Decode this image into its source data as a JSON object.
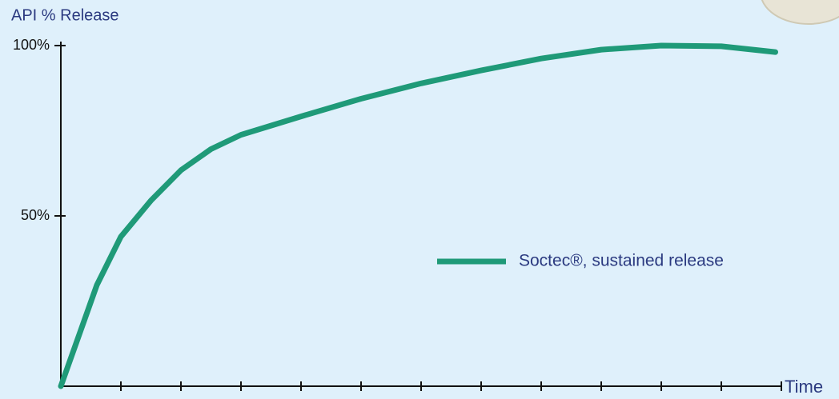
{
  "chart_data": {
    "type": "line",
    "y_axis_label": "API % Release",
    "x_axis_label": "Time",
    "x": [
      0,
      0.6,
      1,
      1.5,
      2,
      2.5,
      3,
      4,
      5,
      6,
      7,
      8,
      9,
      10,
      11,
      11.9
    ],
    "series": [
      {
        "name": "Soctec®, sustained release",
        "color": "#1f9a78",
        "values": [
          0,
          29.7,
          43.9,
          54.5,
          63.4,
          69.6,
          73.8,
          79.2,
          84.4,
          88.9,
          92.7,
          96.2,
          98.8,
          100,
          99.8,
          98.1
        ]
      }
    ],
    "xlim": [
      0,
      12
    ],
    "xticks": [
      1,
      2,
      3,
      4,
      5,
      6,
      7,
      8,
      9,
      10,
      11,
      12
    ],
    "ylim": [
      0,
      100
    ],
    "yticks": [
      {
        "value": 50,
        "label": "50%"
      },
      {
        "value": 100,
        "label": "100%"
      }
    ],
    "grid": false,
    "legend": "center-right"
  }
}
